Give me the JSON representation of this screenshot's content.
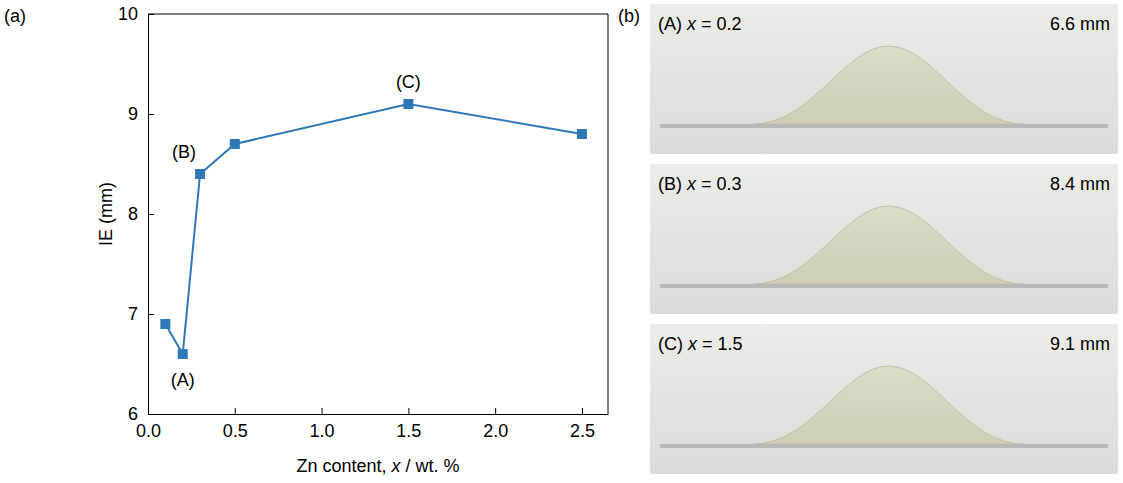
{
  "chart_data": {
    "type": "line",
    "panel_label": "(a)",
    "x_label": "Zn content, x / wt. %",
    "y_label": "IE (mm)",
    "x": [
      0.1,
      0.2,
      0.3,
      0.5,
      1.5,
      2.5
    ],
    "y": [
      6.9,
      6.6,
      8.4,
      8.7,
      9.1,
      8.8
    ],
    "color": "#2f78b8",
    "marker": "square",
    "line_style": "solid",
    "xlim": [
      0,
      2.65
    ],
    "xticks": [
      {
        "value": 0,
        "label": "0.0"
      },
      0.5,
      {
        "value": 1,
        "label": "1.0"
      },
      1.5,
      {
        "value": 2,
        "label": "2.0"
      },
      2.5
    ],
    "ylim": [
      6,
      10
    ],
    "yticks": [
      6,
      7,
      8,
      9,
      10
    ],
    "grid": false,
    "annotations": [
      {
        "text": "(A)",
        "x": 0.2,
        "y": 6.6
      },
      {
        "text": "(B)",
        "x": 0.3,
        "y": 8.4
      },
      {
        "text": "(C)",
        "x": 1.5,
        "y": 9.1
      }
    ]
  },
  "photo_panel": {
    "panel_label": "(b)",
    "photos": [
      {
        "label": "(A) x = 0.2",
        "ie": "6.6 mm"
      },
      {
        "label": "(B) x = 0.3",
        "ie": "8.4 mm"
      },
      {
        "label": "(C) x = 1.5",
        "ie": "9.1 mm"
      }
    ]
  }
}
